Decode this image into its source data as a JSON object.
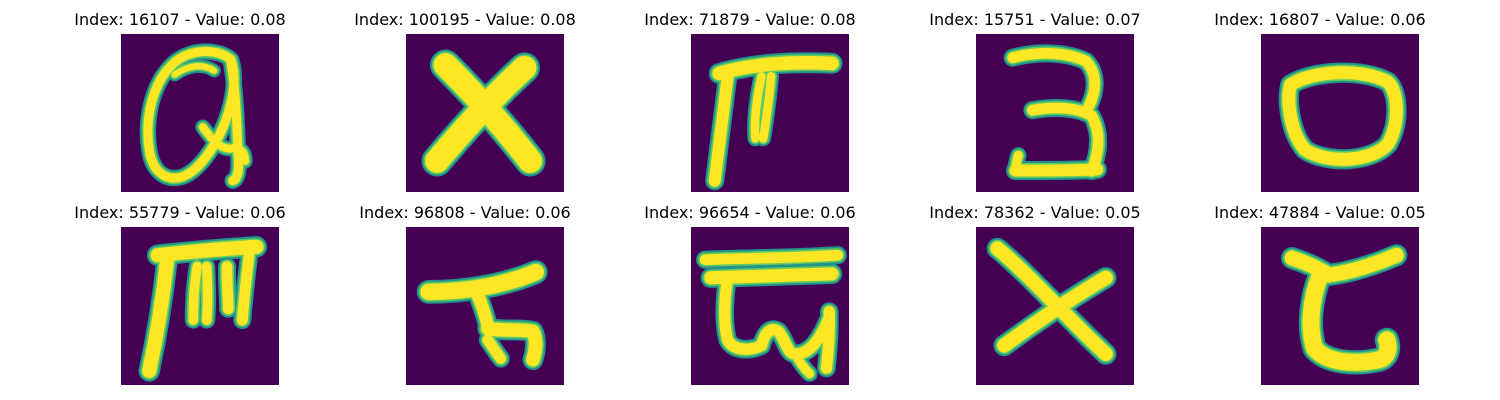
{
  "colors": {
    "background": "#440154",
    "stroke_core": "#fde725",
    "stroke_edge": "#21918c",
    "stroke_mid": "#5ec962"
  },
  "panels": [
    {
      "title": "Index: 16107 - Value: 0.08",
      "glyph": "script-a"
    },
    {
      "title": "Index: 100195 - Value: 0.08",
      "glyph": "x-thick"
    },
    {
      "title": "Index: 71879 - Value: 0.08",
      "glyph": "gamma-hook"
    },
    {
      "title": "Index: 15751 - Value: 0.07",
      "glyph": "three"
    },
    {
      "title": "Index: 16807 - Value: 0.06",
      "glyph": "o-ring"
    },
    {
      "title": "Index: 55779 - Value: 0.06",
      "glyph": "m-glyph"
    },
    {
      "title": "Index: 96808 - Value: 0.06",
      "glyph": "t-hook"
    },
    {
      "title": "Index: 96654 - Value: 0.06",
      "glyph": "script-g"
    },
    {
      "title": "Index: 78362 - Value: 0.05",
      "glyph": "x-thin"
    },
    {
      "title": "Index: 47884 - Value: 0.05",
      "glyph": "c-curve"
    }
  ]
}
